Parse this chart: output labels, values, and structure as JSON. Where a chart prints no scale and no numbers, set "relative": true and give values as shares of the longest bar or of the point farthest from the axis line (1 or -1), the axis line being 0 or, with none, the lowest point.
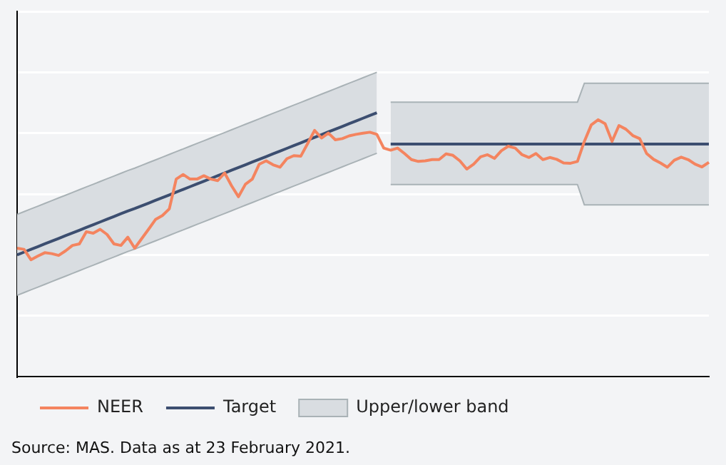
{
  "chart_data": {
    "type": "line",
    "relative": true,
    "grid": "y",
    "legend": "bottom left",
    "line_style": "solid",
    "marker": "none",
    "categories": [
      null,
      null,
      null,
      null,
      null,
      null,
      null,
      null,
      null,
      null,
      null,
      null,
      null,
      null,
      null,
      null,
      null,
      null,
      null,
      null,
      null,
      null,
      null,
      null,
      null,
      null,
      null,
      null,
      null,
      null,
      null,
      null,
      null,
      null,
      null,
      null,
      null,
      null,
      null,
      null,
      null,
      null,
      null,
      null,
      null,
      null,
      null,
      null,
      null,
      null,
      null,
      null,
      null,
      null,
      null,
      null,
      null,
      null,
      null,
      null,
      null,
      null,
      null,
      null,
      null,
      null,
      null,
      null,
      null,
      null,
      null,
      null,
      null,
      null,
      null,
      null,
      null,
      null,
      null,
      null,
      null,
      null,
      null,
      null,
      null,
      null,
      null,
      null,
      null,
      null,
      null,
      null,
      null,
      null,
      null,
      null,
      null,
      null,
      null,
      null,
      null
    ],
    "series": [
      {
        "name": "NEER",
        "type": "line",
        "color": "#f4845f",
        "values": [
          0.422,
          0.418,
          0.384,
          0.396,
          0.407,
          0.404,
          0.398,
          0.413,
          0.431,
          0.436,
          0.476,
          0.471,
          0.484,
          0.467,
          0.436,
          0.431,
          0.458,
          0.422,
          0.453,
          0.484,
          0.516,
          0.529,
          0.551,
          0.649,
          0.664,
          0.649,
          0.649,
          0.66,
          0.649,
          0.644,
          0.669,
          0.627,
          0.591,
          0.632,
          0.649,
          0.698,
          0.709,
          0.696,
          0.688,
          0.716,
          0.726,
          0.724,
          0.766,
          0.809,
          0.784,
          0.8,
          0.778,
          0.782,
          0.791,
          0.796,
          0.8,
          0.803,
          0.796,
          0.751,
          0.744,
          0.751,
          0.733,
          0.713,
          0.707,
          0.709,
          0.713,
          0.713,
          0.732,
          0.727,
          0.709,
          0.682,
          0.698,
          0.722,
          0.729,
          0.717,
          0.742,
          0.757,
          0.751,
          0.729,
          0.72,
          0.733,
          0.713,
          0.72,
          0.714,
          0.702,
          0.701,
          0.707,
          0.773,
          0.827,
          0.844,
          0.831,
          0.773,
          0.825,
          0.813,
          0.792,
          0.782,
          0.733,
          0.714,
          0.702,
          0.688,
          0.711,
          0.721,
          0.713,
          0.698,
          0.689,
          0.704
        ]
      },
      {
        "name": "Target",
        "type": "line",
        "color": "#3c4e70",
        "values": [
          0.4,
          0.409,
          0.418,
          0.427,
          0.436,
          0.445,
          0.454,
          0.463,
          0.472,
          0.481,
          0.49,
          0.499,
          0.508,
          0.517,
          0.526,
          0.535,
          0.544,
          0.552,
          0.561,
          0.57,
          0.579,
          0.588,
          0.597,
          0.606,
          0.615,
          0.624,
          0.633,
          0.642,
          0.651,
          0.66,
          0.669,
          0.678,
          0.687,
          0.696,
          0.705,
          0.714,
          0.723,
          0.732,
          0.741,
          0.75,
          0.759,
          0.768,
          0.777,
          0.786,
          0.795,
          0.804,
          0.813,
          0.822,
          0.831,
          0.84,
          0.849,
          0.858,
          0.867,
          null,
          0.764,
          0.764,
          0.764,
          0.764,
          0.764,
          0.764,
          0.764,
          0.764,
          0.764,
          0.764,
          0.764,
          0.764,
          0.764,
          0.764,
          0.764,
          0.764,
          0.764,
          0.764,
          0.764,
          0.764,
          0.764,
          0.764,
          0.764,
          0.764,
          0.764,
          0.764,
          0.764,
          0.764,
          0.764,
          0.764,
          0.764,
          0.764,
          0.764,
          0.764,
          0.764,
          0.764,
          0.764,
          0.764,
          0.764,
          0.764,
          0.764,
          0.764,
          0.764,
          0.764,
          0.764,
          0.764,
          0.764
        ]
      },
      {
        "name": "Upper/lower band",
        "type": "area",
        "color": "#d9dde1",
        "values": [
          0.533,
          0.542,
          0.551,
          0.56,
          0.569,
          0.578,
          0.587,
          0.596,
          0.605,
          0.614,
          0.623,
          0.632,
          0.641,
          0.65,
          0.659,
          0.668,
          0.677,
          0.685,
          0.694,
          0.703,
          0.712,
          0.721,
          0.73,
          0.739,
          0.748,
          0.757,
          0.766,
          0.775,
          0.784,
          0.793,
          0.802,
          0.811,
          0.82,
          0.829,
          0.838,
          0.847,
          0.856,
          0.865,
          0.874,
          0.883,
          0.892,
          0.901,
          0.91,
          0.919,
          0.928,
          0.937,
          0.946,
          0.955,
          0.964,
          0.973,
          0.982,
          0.991,
          1.0,
          null,
          0.902,
          0.902,
          0.902,
          0.902,
          0.902,
          0.902,
          0.902,
          0.902,
          0.902,
          0.902,
          0.902,
          0.902,
          0.902,
          0.902,
          0.902,
          0.902,
          0.902,
          0.902,
          0.902,
          0.902,
          0.902,
          0.902,
          0.902,
          0.902,
          0.902,
          0.902,
          0.902,
          0.902,
          0.964,
          0.964,
          0.964,
          0.964,
          0.964,
          0.964,
          0.964,
          0.964,
          0.964,
          0.964,
          0.964,
          0.964,
          0.964,
          0.964,
          0.964,
          0.964,
          0.964,
          0.964,
          0.964
        ]
      },
      {
        "type": "line",
        "color": "#a9b2b6",
        "values": [
          0.267,
          0.276,
          0.285,
          0.294,
          0.303,
          0.312,
          0.321,
          0.33,
          0.339,
          0.348,
          0.357,
          0.366,
          0.375,
          0.384,
          0.393,
          0.402,
          0.411,
          0.419,
          0.428,
          0.437,
          0.446,
          0.455,
          0.464,
          0.473,
          0.482,
          0.491,
          0.5,
          0.509,
          0.518,
          0.527,
          0.536,
          0.545,
          0.554,
          0.563,
          0.572,
          0.581,
          0.59,
          0.599,
          0.608,
          0.617,
          0.626,
          0.635,
          0.644,
          0.653,
          0.662,
          0.671,
          0.68,
          0.689,
          0.698,
          0.707,
          0.716,
          0.725,
          0.734,
          null,
          0.631,
          0.631,
          0.631,
          0.631,
          0.631,
          0.631,
          0.631,
          0.631,
          0.631,
          0.631,
          0.631,
          0.631,
          0.631,
          0.631,
          0.631,
          0.631,
          0.631,
          0.631,
          0.631,
          0.631,
          0.631,
          0.631,
          0.631,
          0.631,
          0.631,
          0.631,
          0.631,
          0.631,
          0.564,
          0.564,
          0.564,
          0.564,
          0.564,
          0.564,
          0.564,
          0.564,
          0.564,
          0.564,
          0.564,
          0.564,
          0.564,
          0.564,
          0.564,
          0.564,
          0.564,
          0.564,
          0.564
        ]
      }
    ],
    "annotations": [
      "Source: MAS. Data as at 23 February 2021."
    ]
  }
}
